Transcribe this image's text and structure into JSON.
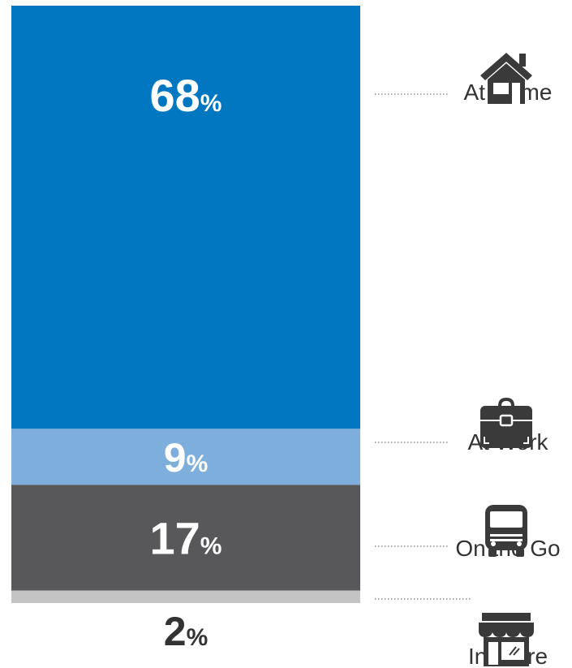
{
  "chart_data": {
    "type": "bar",
    "stacked": true,
    "unit": "%",
    "categories": [
      "At Home",
      "At Work",
      "On the Go",
      "In Store"
    ],
    "values": [
      68,
      9,
      17,
      2
    ],
    "value_labels": [
      "68",
      "9",
      "17",
      "2"
    ],
    "colors": [
      "#0077c0",
      "#7eaedb",
      "#58585a",
      "#c4c4c4"
    ],
    "value_label_colors": [
      "#ffffff",
      "#ffffff",
      "#ffffff",
      "#333333"
    ],
    "icons": [
      "house-icon",
      "briefcase-icon",
      "bus-icon",
      "storefront-icon"
    ],
    "title": "",
    "xlabel": "",
    "ylabel": "",
    "legend": "right"
  }
}
